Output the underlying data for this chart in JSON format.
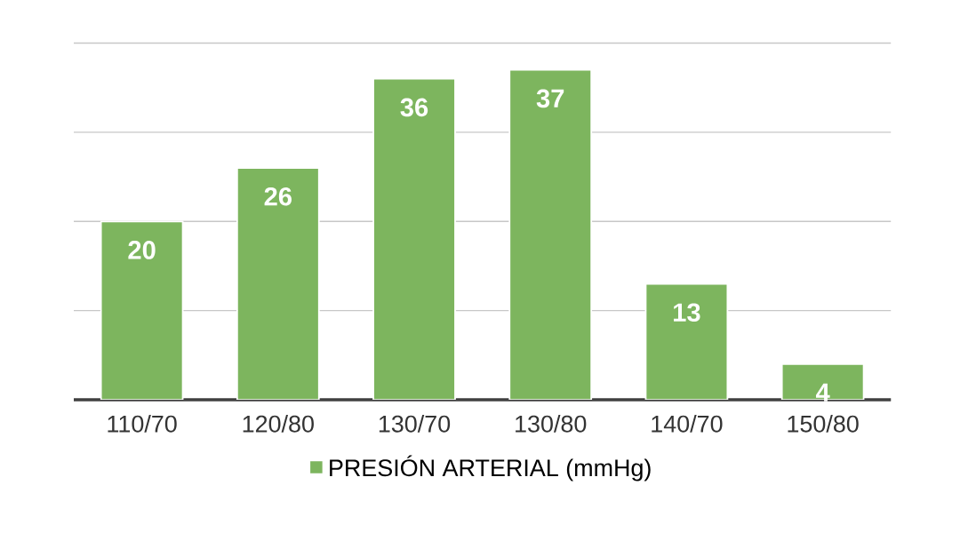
{
  "chart_data": {
    "type": "bar",
    "categories": [
      "110/70",
      "120/80",
      "130/70",
      "130/80",
      "140/70",
      "150/80"
    ],
    "series": [
      {
        "name": "PRESIÓN ARTERIAL (mmHg)",
        "color": "#7db55e",
        "values": [
          20,
          26,
          36,
          37,
          13,
          4
        ]
      }
    ],
    "tick_labels": "x",
    "grid": "y",
    "legend": "bottom",
    "data_labels": true
  }
}
